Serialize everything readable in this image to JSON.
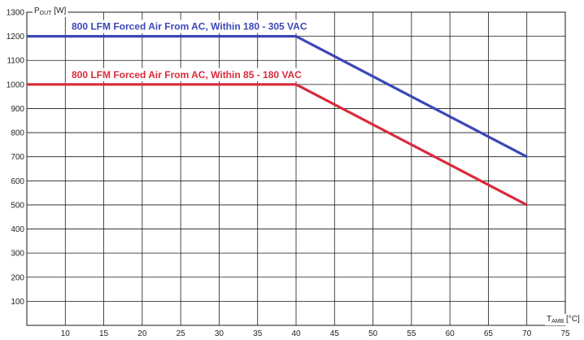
{
  "chart_data": {
    "type": "line",
    "xlabel_main": "T",
    "xlabel_sub": "AMB",
    "xlabel_unit": " [°C]",
    "ylabel_main": "P",
    "ylabel_sub": "OUT",
    "ylabel_unit": " [W]",
    "xlim": [
      5,
      75
    ],
    "ylim": [
      0,
      1300
    ],
    "x_ticks": [
      10,
      15,
      20,
      25,
      30,
      35,
      40,
      45,
      50,
      55,
      60,
      65,
      70,
      75
    ],
    "y_ticks": [
      100,
      200,
      300,
      400,
      500,
      600,
      700,
      800,
      900,
      1000,
      1100,
      1200,
      1300
    ],
    "grid": true,
    "series": [
      {
        "name": "800 LFM Forced Air From AC, Within 180 - 305 VAC",
        "color": "#3b47b8",
        "points": [
          [
            5,
            1200
          ],
          [
            40,
            1200
          ],
          [
            70,
            700
          ]
        ]
      },
      {
        "name": "800 LFM Forced Air From AC, Within 85 - 180 VAC",
        "color": "#d92b3a",
        "points": [
          [
            5,
            1000
          ],
          [
            40,
            1000
          ],
          [
            70,
            500
          ]
        ]
      }
    ]
  }
}
